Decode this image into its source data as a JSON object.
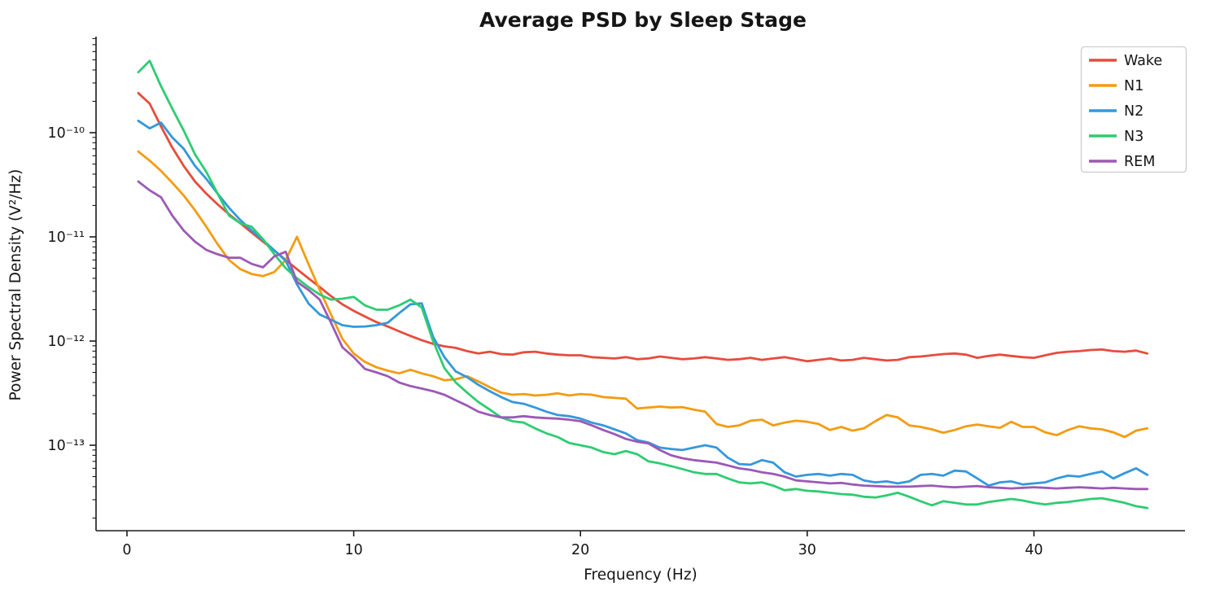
{
  "chart_data": {
    "type": "line",
    "title": "Average PSD by Sleep Stage",
    "xlabel": "Frequency (Hz)",
    "ylabel": "Power Spectral Density (V²/Hz)",
    "x_axis": {
      "ticks": [
        0,
        10,
        20,
        30,
        40
      ],
      "range": [
        -1.4,
        46.7
      ],
      "scale": "linear"
    },
    "y_axis": {
      "scale": "log",
      "tick_values": [
        1e-10,
        1e-11,
        1e-12,
        1e-13
      ],
      "tick_labels": [
        "10⁻¹⁰",
        "10⁻¹¹",
        "10⁻¹²",
        "10⁻¹³"
      ],
      "range": [
        1.45e-14,
        8.4e-10
      ]
    },
    "legend": {
      "position": "upper right"
    },
    "grid": false,
    "x_start": 0.5,
    "x_step": 0.5,
    "series": [
      {
        "name": "Wake",
        "color": "#e74c3c",
        "values": [
          2.4e-10,
          1.9e-10,
          1.15e-10,
          7.2e-11,
          4.8e-11,
          3.4e-11,
          2.6e-11,
          2.05e-11,
          1.65e-11,
          1.35e-11,
          1.1e-11,
          9e-12,
          7.4e-12,
          6e-12,
          4.9e-12,
          4e-12,
          3.3e-12,
          2.7e-12,
          2.25e-12,
          1.95e-12,
          1.72e-12,
          1.52e-12,
          1.38e-12,
          1.24e-12,
          1.12e-12,
          1.02e-12,
          9.4e-13,
          8.9e-13,
          8.6e-13,
          8e-13,
          7.6e-13,
          7.9e-13,
          7.5e-13,
          7.4e-13,
          7.8e-13,
          7.9e-13,
          7.6e-13,
          7.4e-13,
          7.3e-13,
          7.3e-13,
          7e-13,
          6.9e-13,
          6.8e-13,
          7e-13,
          6.7e-13,
          6.8e-13,
          7.1e-13,
          6.9e-13,
          6.7e-13,
          6.8e-13,
          7e-13,
          6.8e-13,
          6.6e-13,
          6.7e-13,
          6.9e-13,
          6.6e-13,
          6.8e-13,
          7e-13,
          6.7e-13,
          6.4e-13,
          6.6e-13,
          6.8e-13,
          6.5e-13,
          6.6e-13,
          6.9e-13,
          6.7e-13,
          6.5e-13,
          6.6e-13,
          7e-13,
          7.1e-13,
          7.3e-13,
          7.5e-13,
          7.6e-13,
          7.4e-13,
          6.9e-13,
          7.2e-13,
          7.4e-13,
          7.2e-13,
          7e-13,
          6.9e-13,
          7.3e-13,
          7.7e-13,
          7.9e-13,
          8e-13,
          8.2e-13,
          8.3e-13,
          8e-13,
          7.9e-13,
          8.1e-13,
          7.6e-13
        ]
      },
      {
        "name": "N1",
        "color": "#f39c12",
        "values": [
          6.6e-11,
          5.4e-11,
          4.3e-11,
          3.3e-11,
          2.5e-11,
          1.8e-11,
          1.25e-11,
          8.5e-12,
          6e-12,
          4.9e-12,
          4.4e-12,
          4.2e-12,
          4.6e-12,
          6e-12,
          1e-11,
          5.5e-12,
          3.1e-12,
          1.8e-12,
          1.05e-12,
          7.6e-13,
          6.3e-13,
          5.6e-13,
          5.2e-13,
          4.9e-13,
          5.3e-13,
          4.9e-13,
          4.6e-13,
          4.2e-13,
          4.3e-13,
          4.6e-13,
          4.1e-13,
          3.6e-13,
          3.2e-13,
          3.05e-13,
          3.1e-13,
          3e-13,
          3.05e-13,
          3.15e-13,
          3e-13,
          3.1e-13,
          3.05e-13,
          2.9e-13,
          2.85e-13,
          2.8e-13,
          2.25e-13,
          2.3e-13,
          2.35e-13,
          2.3e-13,
          2.32e-13,
          2.2e-13,
          2.1e-13,
          1.6e-13,
          1.5e-13,
          1.55e-13,
          1.72e-13,
          1.76e-13,
          1.55e-13,
          1.65e-13,
          1.72e-13,
          1.68e-13,
          1.6e-13,
          1.4e-13,
          1.5e-13,
          1.38e-13,
          1.45e-13,
          1.7e-13,
          1.95e-13,
          1.85e-13,
          1.55e-13,
          1.5e-13,
          1.42e-13,
          1.32e-13,
          1.4e-13,
          1.52e-13,
          1.58e-13,
          1.52e-13,
          1.47e-13,
          1.68e-13,
          1.5e-13,
          1.5e-13,
          1.33e-13,
          1.25e-13,
          1.4e-13,
          1.52e-13,
          1.45e-13,
          1.42e-13,
          1.33e-13,
          1.2e-13,
          1.38e-13,
          1.45e-13
        ]
      },
      {
        "name": "N2",
        "color": "#3498db",
        "values": [
          1.3e-10,
          1.1e-10,
          1.25e-10,
          9e-11,
          7e-11,
          4.8e-11,
          3.6e-11,
          2.6e-11,
          1.9e-11,
          1.45e-11,
          1.15e-11,
          9.3e-12,
          7.4e-12,
          5.9e-12,
          3.5e-12,
          2.3e-12,
          1.8e-12,
          1.6e-12,
          1.42e-12,
          1.37e-12,
          1.38e-12,
          1.42e-12,
          1.5e-12,
          1.85e-12,
          2.25e-12,
          2.3e-12,
          1.1e-12,
          7e-13,
          5.1e-13,
          4.5e-13,
          3.8e-13,
          3.3e-13,
          2.9e-13,
          2.6e-13,
          2.5e-13,
          2.3e-13,
          2.1e-13,
          1.95e-13,
          1.9e-13,
          1.8e-13,
          1.65e-13,
          1.55e-13,
          1.42e-13,
          1.3e-13,
          1.12e-13,
          1.06e-13,
          9.5e-14,
          9.2e-14,
          9e-14,
          9.5e-14,
          1e-13,
          9.5e-14,
          7.6e-14,
          6.6e-14,
          6.5e-14,
          7.2e-14,
          6.8e-14,
          5.5e-14,
          5e-14,
          5.2e-14,
          5.3e-14,
          5.1e-14,
          5.3e-14,
          5.2e-14,
          4.6e-14,
          4.4e-14,
          4.5e-14,
          4.3e-14,
          4.5e-14,
          5.2e-14,
          5.3e-14,
          5.1e-14,
          5.7e-14,
          5.6e-14,
          4.8e-14,
          4.1e-14,
          4.4e-14,
          4.5e-14,
          4.2e-14,
          4.3e-14,
          4.4e-14,
          4.8e-14,
          5.1e-14,
          5e-14,
          5.3e-14,
          5.6e-14,
          4.8e-14,
          5.4e-14,
          6e-14,
          5.2e-14
        ]
      },
      {
        "name": "N3",
        "color": "#2ecc71",
        "values": [
          3.8e-10,
          4.9e-10,
          2.8e-10,
          1.7e-10,
          1.05e-10,
          6.2e-11,
          4.2e-11,
          2.6e-11,
          1.6e-11,
          1.35e-11,
          1.25e-11,
          9.5e-12,
          6.8e-12,
          5e-12,
          4e-12,
          3.3e-12,
          2.8e-12,
          2.5e-12,
          2.55e-12,
          2.65e-12,
          2.2e-12,
          2e-12,
          2e-12,
          2.2e-12,
          2.5e-12,
          2.1e-12,
          1e-12,
          5.5e-13,
          4e-13,
          3.2e-13,
          2.6e-13,
          2.2e-13,
          1.85e-13,
          1.7e-13,
          1.65e-13,
          1.45e-13,
          1.3e-13,
          1.2e-13,
          1.05e-13,
          1e-13,
          9.5e-14,
          8.6e-14,
          8.2e-14,
          8.8e-14,
          8.2e-14,
          7e-14,
          6.7e-14,
          6.3e-14,
          5.9e-14,
          5.5e-14,
          5.3e-14,
          5.3e-14,
          4.8e-14,
          4.4e-14,
          4.3e-14,
          4.4e-14,
          4.1e-14,
          3.7e-14,
          3.8e-14,
          3.65e-14,
          3.6e-14,
          3.5e-14,
          3.4e-14,
          3.35e-14,
          3.2e-14,
          3.15e-14,
          3.3e-14,
          3.5e-14,
          3.2e-14,
          2.9e-14,
          2.65e-14,
          2.9e-14,
          2.8e-14,
          2.7e-14,
          2.7e-14,
          2.85e-14,
          2.95e-14,
          3.05e-14,
          2.95e-14,
          2.8e-14,
          2.7e-14,
          2.8e-14,
          2.85e-14,
          2.95e-14,
          3.05e-14,
          3.1e-14,
          2.95e-14,
          2.8e-14,
          2.6e-14,
          2.5e-14
        ]
      },
      {
        "name": "REM",
        "color": "#9b59b6",
        "values": [
          3.4e-11,
          2.8e-11,
          2.4e-11,
          1.6e-11,
          1.15e-11,
          9e-12,
          7.5e-12,
          6.8e-12,
          6.3e-12,
          6.3e-12,
          5.5e-12,
          5.1e-12,
          6.5e-12,
          7.2e-12,
          3.7e-12,
          3.1e-12,
          2.5e-12,
          1.5e-12,
          8.7e-13,
          7e-13,
          5.4e-13,
          5e-13,
          4.6e-13,
          4e-13,
          3.7e-13,
          3.5e-13,
          3.3e-13,
          3.05e-13,
          2.7e-13,
          2.4e-13,
          2.1e-13,
          1.95e-13,
          1.85e-13,
          1.85e-13,
          1.9e-13,
          1.85e-13,
          1.82e-13,
          1.8e-13,
          1.76e-13,
          1.7e-13,
          1.55e-13,
          1.4e-13,
          1.28e-13,
          1.15e-13,
          1.08e-13,
          1.04e-13,
          9e-14,
          8e-14,
          7.5e-14,
          7.2e-14,
          7e-14,
          6.8e-14,
          6.4e-14,
          6e-14,
          5.8e-14,
          5.5e-14,
          5.3e-14,
          5e-14,
          4.6e-14,
          4.5e-14,
          4.4e-14,
          4.3e-14,
          4.35e-14,
          4.2e-14,
          4.1e-14,
          4.05e-14,
          4e-14,
          4e-14,
          4e-14,
          4.05e-14,
          4.1e-14,
          4e-14,
          3.95e-14,
          4e-14,
          4.05e-14,
          3.95e-14,
          3.9e-14,
          3.85e-14,
          3.9e-14,
          3.95e-14,
          3.9e-14,
          3.85e-14,
          3.9e-14,
          3.95e-14,
          3.9e-14,
          3.85e-14,
          3.9e-14,
          3.85e-14,
          3.8e-14,
          3.8e-14
        ]
      }
    ]
  }
}
